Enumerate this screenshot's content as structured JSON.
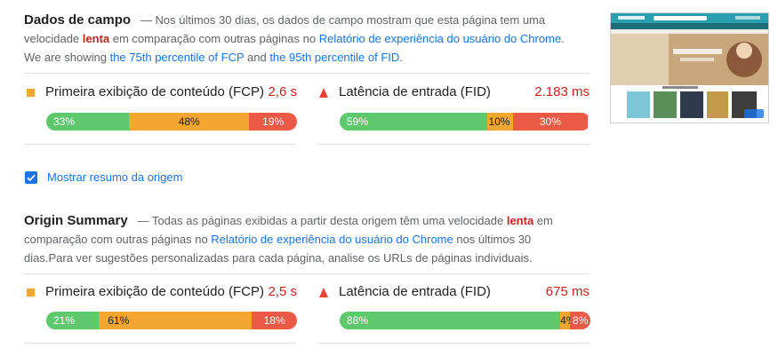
{
  "field": {
    "title": "Dados de campo",
    "dash": "—",
    "desc_pre": " Nos últimos 30 dias, os dados de campo mostram que esta página tem uma velocidade ",
    "speed": "lenta",
    "desc_mid": " em comparação com outras páginas no ",
    "report_link": "Relatório de experiência do usuário do Chrome",
    "desc_end": ".",
    "line2_pre": "We are showing ",
    "fcp_link": "the 75th percentile of FCP",
    "line2_mid": " and ",
    "fid_link": "the 95th percentile of FID",
    "line2_end": ".",
    "fcp": {
      "name": "Primeira exibição de conteúdo (FCP)",
      "value": "2,6 s",
      "good": 33,
      "avg": 48,
      "poor": 19,
      "good_label": "33%",
      "avg_label": "48%",
      "poor_label": "19%"
    },
    "fid": {
      "name": "Latência de entrada (FID)",
      "value": "2.183 ms",
      "good": 59,
      "avg": 10,
      "poor": 30,
      "good_label": "59%",
      "avg_label": "10%",
      "poor_label": "30%"
    }
  },
  "toggle": {
    "label": "Mostrar resumo da origem",
    "checked": true
  },
  "origin": {
    "title": "Origin Summary",
    "dash": "—",
    "desc_pre": " Todas as páginas exibidas a partir desta origem têm uma velocidade ",
    "speed": "lenta",
    "desc_mid": " em comparação com outras páginas no ",
    "report_link": "Relatório de experiência do usuário do Chrome",
    "desc_end": " nos últimos 30 dias.Para ver sugestões personalizadas para cada página, analise os URLs de páginas individuais.",
    "fcp": {
      "name": "Primeira exibição de conteúdo (FCP)",
      "value": "2,5 s",
      "good": 21,
      "avg": 61,
      "poor": 18,
      "good_label": "21%",
      "avg_label": "61%",
      "poor_label": "18%"
    },
    "fid": {
      "name": "Latência de entrada (FID)",
      "value": "675 ms",
      "good": 88,
      "avg": 4,
      "poor": 8,
      "good_label": "88%",
      "avg_label": "4%",
      "poor_label": "8%"
    }
  },
  "colors": {
    "good": "#5ec96c",
    "average": "#f4a633",
    "poor": "#ea5a47",
    "link": "#1a73e8",
    "slow": "#c5221f"
  },
  "icons": {
    "fcp": "orange-square-icon",
    "fid": "red-triangle-icon",
    "toggle": "checkbox-checked-icon"
  }
}
